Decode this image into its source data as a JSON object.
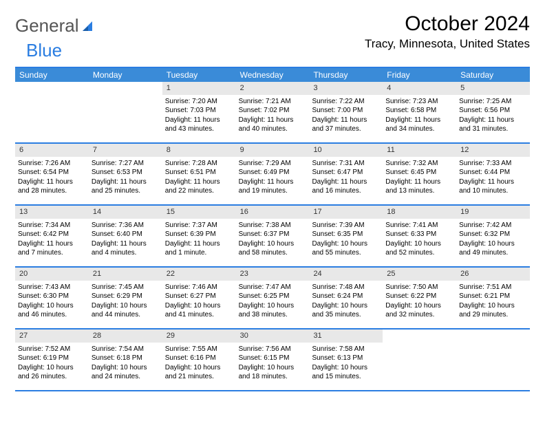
{
  "branding": {
    "logo_text_1": "General",
    "logo_text_2": "Blue",
    "logo_color_gray": "#555555",
    "logo_color_blue": "#2a7de1"
  },
  "header": {
    "month_title": "October 2024",
    "location": "Tracy, Minnesota, United States"
  },
  "style": {
    "header_bg": "#3a8bd8",
    "rule_color": "#2a7de1",
    "daynum_bg": "#e8e8e8",
    "text_color": "#000000",
    "head_font_size": 12,
    "cell_font_size": 10
  },
  "day_headers": [
    "Sunday",
    "Monday",
    "Tuesday",
    "Wednesday",
    "Thursday",
    "Friday",
    "Saturday"
  ],
  "weeks": [
    [
      {
        "empty": true
      },
      {
        "empty": true
      },
      {
        "day": "1",
        "sunrise": "Sunrise: 7:20 AM",
        "sunset": "Sunset: 7:03 PM",
        "daylight": "Daylight: 11 hours and 43 minutes."
      },
      {
        "day": "2",
        "sunrise": "Sunrise: 7:21 AM",
        "sunset": "Sunset: 7:02 PM",
        "daylight": "Daylight: 11 hours and 40 minutes."
      },
      {
        "day": "3",
        "sunrise": "Sunrise: 7:22 AM",
        "sunset": "Sunset: 7:00 PM",
        "daylight": "Daylight: 11 hours and 37 minutes."
      },
      {
        "day": "4",
        "sunrise": "Sunrise: 7:23 AM",
        "sunset": "Sunset: 6:58 PM",
        "daylight": "Daylight: 11 hours and 34 minutes."
      },
      {
        "day": "5",
        "sunrise": "Sunrise: 7:25 AM",
        "sunset": "Sunset: 6:56 PM",
        "daylight": "Daylight: 11 hours and 31 minutes."
      }
    ],
    [
      {
        "day": "6",
        "sunrise": "Sunrise: 7:26 AM",
        "sunset": "Sunset: 6:54 PM",
        "daylight": "Daylight: 11 hours and 28 minutes."
      },
      {
        "day": "7",
        "sunrise": "Sunrise: 7:27 AM",
        "sunset": "Sunset: 6:53 PM",
        "daylight": "Daylight: 11 hours and 25 minutes."
      },
      {
        "day": "8",
        "sunrise": "Sunrise: 7:28 AM",
        "sunset": "Sunset: 6:51 PM",
        "daylight": "Daylight: 11 hours and 22 minutes."
      },
      {
        "day": "9",
        "sunrise": "Sunrise: 7:29 AM",
        "sunset": "Sunset: 6:49 PM",
        "daylight": "Daylight: 11 hours and 19 minutes."
      },
      {
        "day": "10",
        "sunrise": "Sunrise: 7:31 AM",
        "sunset": "Sunset: 6:47 PM",
        "daylight": "Daylight: 11 hours and 16 minutes."
      },
      {
        "day": "11",
        "sunrise": "Sunrise: 7:32 AM",
        "sunset": "Sunset: 6:45 PM",
        "daylight": "Daylight: 11 hours and 13 minutes."
      },
      {
        "day": "12",
        "sunrise": "Sunrise: 7:33 AM",
        "sunset": "Sunset: 6:44 PM",
        "daylight": "Daylight: 11 hours and 10 minutes."
      }
    ],
    [
      {
        "day": "13",
        "sunrise": "Sunrise: 7:34 AM",
        "sunset": "Sunset: 6:42 PM",
        "daylight": "Daylight: 11 hours and 7 minutes."
      },
      {
        "day": "14",
        "sunrise": "Sunrise: 7:36 AM",
        "sunset": "Sunset: 6:40 PM",
        "daylight": "Daylight: 11 hours and 4 minutes."
      },
      {
        "day": "15",
        "sunrise": "Sunrise: 7:37 AM",
        "sunset": "Sunset: 6:39 PM",
        "daylight": "Daylight: 11 hours and 1 minute."
      },
      {
        "day": "16",
        "sunrise": "Sunrise: 7:38 AM",
        "sunset": "Sunset: 6:37 PM",
        "daylight": "Daylight: 10 hours and 58 minutes."
      },
      {
        "day": "17",
        "sunrise": "Sunrise: 7:39 AM",
        "sunset": "Sunset: 6:35 PM",
        "daylight": "Daylight: 10 hours and 55 minutes."
      },
      {
        "day": "18",
        "sunrise": "Sunrise: 7:41 AM",
        "sunset": "Sunset: 6:33 PM",
        "daylight": "Daylight: 10 hours and 52 minutes."
      },
      {
        "day": "19",
        "sunrise": "Sunrise: 7:42 AM",
        "sunset": "Sunset: 6:32 PM",
        "daylight": "Daylight: 10 hours and 49 minutes."
      }
    ],
    [
      {
        "day": "20",
        "sunrise": "Sunrise: 7:43 AM",
        "sunset": "Sunset: 6:30 PM",
        "daylight": "Daylight: 10 hours and 46 minutes."
      },
      {
        "day": "21",
        "sunrise": "Sunrise: 7:45 AM",
        "sunset": "Sunset: 6:29 PM",
        "daylight": "Daylight: 10 hours and 44 minutes."
      },
      {
        "day": "22",
        "sunrise": "Sunrise: 7:46 AM",
        "sunset": "Sunset: 6:27 PM",
        "daylight": "Daylight: 10 hours and 41 minutes."
      },
      {
        "day": "23",
        "sunrise": "Sunrise: 7:47 AM",
        "sunset": "Sunset: 6:25 PM",
        "daylight": "Daylight: 10 hours and 38 minutes."
      },
      {
        "day": "24",
        "sunrise": "Sunrise: 7:48 AM",
        "sunset": "Sunset: 6:24 PM",
        "daylight": "Daylight: 10 hours and 35 minutes."
      },
      {
        "day": "25",
        "sunrise": "Sunrise: 7:50 AM",
        "sunset": "Sunset: 6:22 PM",
        "daylight": "Daylight: 10 hours and 32 minutes."
      },
      {
        "day": "26",
        "sunrise": "Sunrise: 7:51 AM",
        "sunset": "Sunset: 6:21 PM",
        "daylight": "Daylight: 10 hours and 29 minutes."
      }
    ],
    [
      {
        "day": "27",
        "sunrise": "Sunrise: 7:52 AM",
        "sunset": "Sunset: 6:19 PM",
        "daylight": "Daylight: 10 hours and 26 minutes."
      },
      {
        "day": "28",
        "sunrise": "Sunrise: 7:54 AM",
        "sunset": "Sunset: 6:18 PM",
        "daylight": "Daylight: 10 hours and 24 minutes."
      },
      {
        "day": "29",
        "sunrise": "Sunrise: 7:55 AM",
        "sunset": "Sunset: 6:16 PM",
        "daylight": "Daylight: 10 hours and 21 minutes."
      },
      {
        "day": "30",
        "sunrise": "Sunrise: 7:56 AM",
        "sunset": "Sunset: 6:15 PM",
        "daylight": "Daylight: 10 hours and 18 minutes."
      },
      {
        "day": "31",
        "sunrise": "Sunrise: 7:58 AM",
        "sunset": "Sunset: 6:13 PM",
        "daylight": "Daylight: 10 hours and 15 minutes."
      },
      {
        "empty": true
      },
      {
        "empty": true
      }
    ]
  ]
}
